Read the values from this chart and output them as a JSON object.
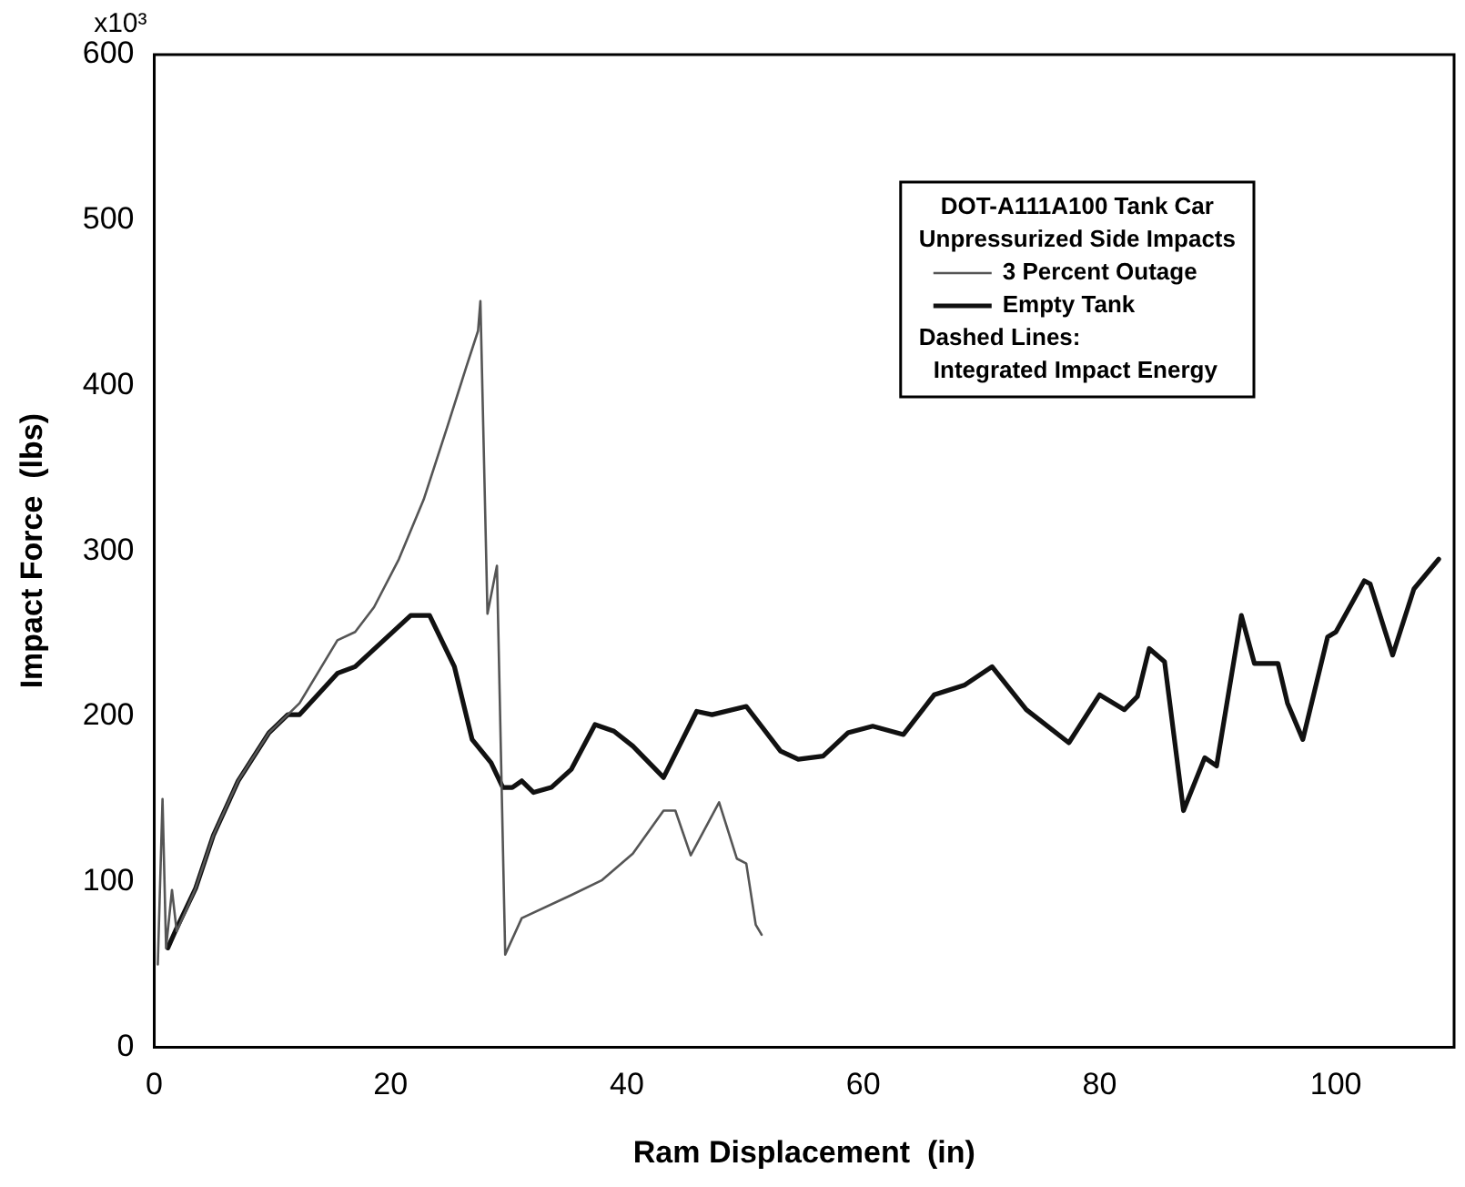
{
  "chart_data": {
    "type": "line",
    "xlabel": "Ram Displacement  (in)",
    "ylabel": "Impact Force  (lbs)",
    "legend_title": "DOT-A111A100 Tank Car Unpressurized Side Impacts",
    "annotations": [
      "Dashed Lines:",
      "Integrated Impact Energy",
      "x10³"
    ],
    "xlim": [
      0,
      110
    ],
    "xticks": [
      0,
      20,
      40,
      60,
      80,
      100
    ],
    "ylim": [
      0,
      600
    ],
    "yticks": [
      0,
      100,
      200,
      300,
      400,
      500,
      600
    ],
    "grid": false,
    "legend": "top right",
    "marker": "none",
    "line_style": "solid",
    "series": [
      {
        "name": "3 Percent Outage",
        "color": "#555555",
        "x": [
          0.3,
          0.7,
          1.0,
          1.5,
          1.9,
          3.5,
          5.0,
          7.1,
          9.7,
          11.3,
          12.3,
          15.5,
          17.0,
          18.6,
          20.7,
          22.8,
          24.8,
          26.4,
          27.4,
          27.6,
          28.2,
          29.0,
          29.7,
          31.1,
          35.3,
          37.9,
          40.5,
          43.1,
          44.1,
          45.4,
          47.8,
          49.3,
          50.1,
          50.9,
          51.4
        ],
        "values": [
          50,
          150,
          60,
          95,
          70,
          96,
          128,
          161,
          190,
          201,
          208,
          246,
          251,
          266,
          295,
          331,
          375,
          411,
          433,
          451,
          262,
          291,
          56,
          78,
          92,
          101,
          117,
          143,
          143,
          116,
          148,
          114,
          111,
          74,
          68
        ]
      },
      {
        "name": "Empty Tank",
        "color": "#111111",
        "x": [
          1.15,
          1.9,
          3.5,
          5.0,
          7.1,
          9.7,
          11.3,
          12.3,
          15.5,
          17.0,
          21.7,
          23.3,
          25.4,
          26.9,
          28.5,
          29.5,
          30.3,
          31.1,
          32.1,
          33.6,
          35.3,
          37.3,
          38.9,
          40.5,
          43.1,
          45.9,
          47.2,
          50.1,
          53.0,
          54.5,
          56.6,
          58.7,
          60.8,
          63.4,
          66.0,
          68.6,
          70.9,
          73.8,
          77.4,
          80.0,
          82.1,
          83.2,
          84.2,
          85.5,
          87.1,
          88.9,
          89.9,
          92.0,
          93.1,
          95.1,
          95.9,
          97.2,
          99.3,
          100.0,
          102.4,
          102.9,
          104.8,
          106.6,
          108.7
        ],
        "values": [
          60,
          72,
          96,
          128,
          161,
          190,
          201,
          201,
          226,
          230,
          261,
          261,
          230,
          186,
          172,
          157,
          157,
          161,
          154,
          157,
          168,
          195,
          191,
          182,
          163,
          203,
          201,
          206,
          179,
          174,
          176,
          190,
          194,
          189,
          213,
          219,
          230,
          204,
          184,
          213,
          204,
          212,
          241,
          233,
          143,
          175,
          170,
          261,
          232,
          232,
          208,
          186,
          248,
          251,
          282,
          280,
          237,
          277,
          295
        ]
      }
    ]
  }
}
